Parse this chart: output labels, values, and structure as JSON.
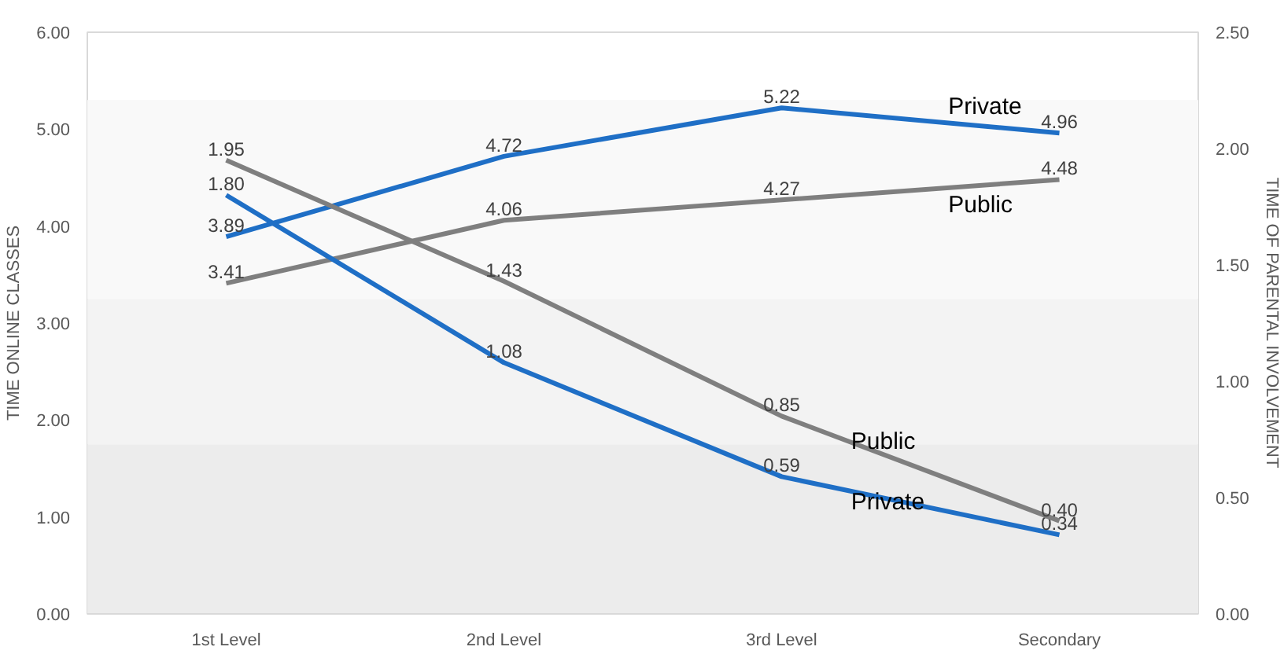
{
  "chart_data": {
    "type": "line",
    "ylabel": "TIME ONLINE CLASSES",
    "y2label": "TIME OF PARENTAL INVOLVEMENT",
    "categories": [
      "1st Level",
      "2nd Level",
      "3rd Level",
      "Secondary"
    ],
    "series": [
      {
        "name": "Private",
        "color": "#1f6fc6",
        "values": [
          3.89,
          4.72,
          5.22,
          4.96
        ],
        "value_labels": [
          "3.89",
          "4.72",
          "5.22",
          "4.96"
        ]
      },
      {
        "name": "Public",
        "color": "#7f7f7f",
        "values": [
          3.41,
          4.06,
          4.27,
          4.48
        ],
        "value_labels": [
          "3.41",
          "4.06",
          "4.27",
          "4.48"
        ]
      },
      {
        "name": "Private",
        "color": "#1f6fc6",
        "values": [
          1.8,
          1.08,
          0.59,
          0.34
        ],
        "axis": "y2",
        "value_labels": [
          "1.80",
          "1.08",
          "0.59",
          "0.34"
        ]
      },
      {
        "name": "Public",
        "color": "#7f7f7f",
        "values": [
          1.95,
          1.43,
          0.85,
          0.4
        ],
        "axis": "y2",
        "value_labels": [
          "1.95",
          "1.43",
          "0.85",
          "0.40"
        ]
      }
    ],
    "ylim": [
      0,
      6
    ],
    "yticks": [
      {
        "value": 0,
        "label": "0.00"
      },
      {
        "value": 1,
        "label": "1.00"
      },
      {
        "value": 2,
        "label": "2.00"
      },
      {
        "value": 3,
        "label": "3.00"
      },
      {
        "value": 4,
        "label": "4.00"
      },
      {
        "value": 5,
        "label": "5.00"
      },
      {
        "value": 6,
        "label": "6.00"
      }
    ],
    "y2lim": [
      0,
      2.5
    ],
    "y2ticks": [
      {
        "value": 0,
        "label": "0.00"
      },
      {
        "value": 0.5,
        "label": "0.50"
      },
      {
        "value": 1,
        "label": "1.00"
      },
      {
        "value": 1.5,
        "label": "1.50"
      },
      {
        "value": 2,
        "label": "2.00"
      },
      {
        "value": 2.5,
        "label": "2.50"
      }
    ],
    "bands": [
      {
        "axis": "y",
        "from": 0,
        "to": 1.75,
        "color": "#ececec"
      },
      {
        "axis": "y",
        "from": 1.75,
        "to": 3.25,
        "color": "#f3f3f3"
      },
      {
        "axis": "y",
        "from": 3.25,
        "to": 5.3,
        "color": "#f9f9f9"
      }
    ],
    "grid": false,
    "marker": "none",
    "line_style": "solid"
  }
}
